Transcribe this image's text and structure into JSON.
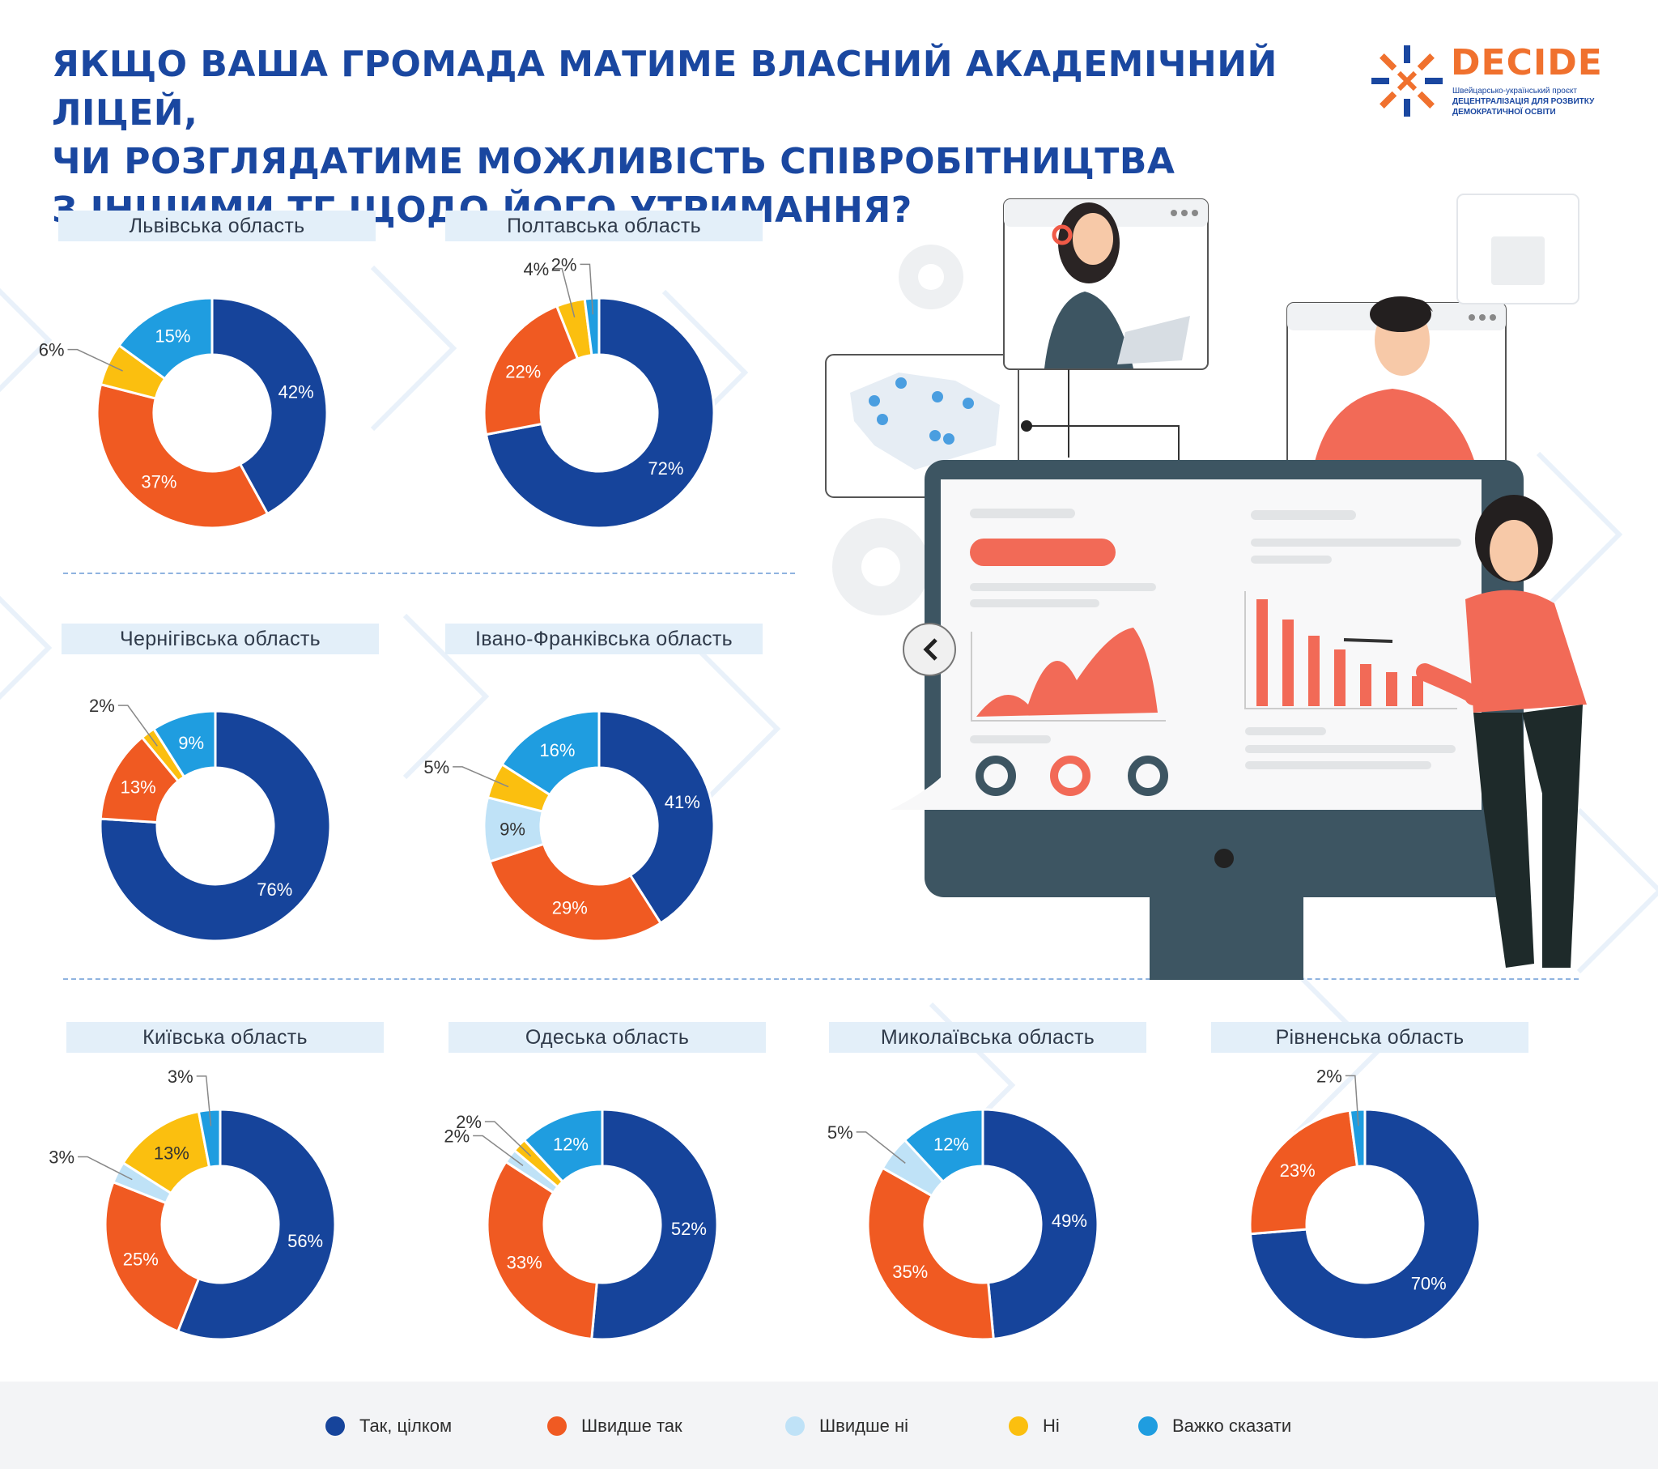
{
  "title_lines": [
    "ЯКЩО ВАША ГРОМАДА МАТИМЕ ВЛАСНИЙ АКАДЕМІЧНИЙ ЛІЦЕЙ,",
    "ЧИ РОЗГЛЯДАТИМЕ МОЖЛИВІСТЬ СПІВРОБІТНИЦТВА",
    "З ІНШИМИ ТГ ЩОДО ЙОГО УТРИМАННЯ?"
  ],
  "logo": {
    "name": "DECIDE",
    "subtitle_lines": [
      "Швейцарсько-український проєкт",
      "ДЕЦЕНТРАЛІЗАЦІЯ ДЛЯ РОЗВИТКУ",
      "ДЕМОКРАТИЧНОЇ ОСВІТИ"
    ]
  },
  "colors": {
    "title": "#1a47a0",
    "yes_fully": "#16449b",
    "rather_yes": "#f05a22",
    "rather_no": "#bfe2f7",
    "no": "#fbbf0f",
    "hard_to_say": "#1f9de0"
  },
  "legend": [
    {
      "label": "Так, цілком",
      "color": "#16449b"
    },
    {
      "label": "Швидше так",
      "color": "#f05a22"
    },
    {
      "label": "Швидше ні",
      "color": "#bfe2f7"
    },
    {
      "label": "Ні",
      "color": "#fbbf0f"
    },
    {
      "label": "Важко сказати",
      "color": "#1f9de0"
    }
  ],
  "chart_data": [
    {
      "type": "pie",
      "title": "Львівська область",
      "categories": [
        "Так, цілком",
        "Швидше так",
        "Ні",
        "Важко сказати"
      ],
      "values": [
        42,
        37,
        6,
        15
      ],
      "labels": [
        "42%",
        "37%",
        "6%",
        "15%"
      ]
    },
    {
      "type": "pie",
      "title": "Полтавська область",
      "categories": [
        "Так, цілком",
        "Швидше так",
        "Ні",
        "Важко сказати"
      ],
      "values": [
        72,
        22,
        4,
        2
      ],
      "labels": [
        "72%",
        "22%",
        "4%",
        "2%"
      ]
    },
    {
      "type": "pie",
      "title": "Чернігівська область",
      "categories": [
        "Так, цілком",
        "Швидше так",
        "Ні",
        "Важко сказати"
      ],
      "values": [
        76,
        13,
        2,
        9
      ],
      "labels": [
        "76%",
        "13%",
        "2%",
        "9%"
      ]
    },
    {
      "type": "pie",
      "title": "Івано-Франківська область",
      "categories": [
        "Так, цілком",
        "Швидше так",
        "Швидше ні",
        "Ні",
        "Важко сказати"
      ],
      "values": [
        41,
        29,
        9,
        5,
        16
      ],
      "labels": [
        "41%",
        "29%",
        "9%",
        "5%",
        "16%"
      ]
    },
    {
      "type": "pie",
      "title": "Київська область",
      "categories": [
        "Так, цілком",
        "Швидше так",
        "Швидше ні",
        "Ні",
        "Важко сказати"
      ],
      "values": [
        56,
        25,
        3,
        13,
        3
      ],
      "labels": [
        "56%",
        "25%",
        "3%",
        "13%",
        "3%"
      ]
    },
    {
      "type": "pie",
      "title": "Одеська область",
      "categories": [
        "Так, цілком",
        "Швидше так",
        "Швидше ні",
        "Ні",
        "Важко сказати"
      ],
      "values": [
        52,
        33,
        2,
        2,
        12
      ],
      "labels": [
        "52%",
        "33%",
        "2%",
        "2%",
        "12%"
      ]
    },
    {
      "type": "pie",
      "title": "Миколаївська область",
      "categories": [
        "Так, цілком",
        "Швидше так",
        "Швидше ні",
        "Важко сказати"
      ],
      "values": [
        49,
        35,
        5,
        12
      ],
      "labels": [
        "49%",
        "35%",
        "5%",
        "12%"
      ]
    },
    {
      "type": "pie",
      "title": "Рівненська область",
      "categories": [
        "Так, цілком",
        "Швидше так",
        "Важко сказати"
      ],
      "values": [
        70,
        23,
        2
      ],
      "labels": [
        "70%",
        "23%",
        "2%"
      ]
    }
  ]
}
